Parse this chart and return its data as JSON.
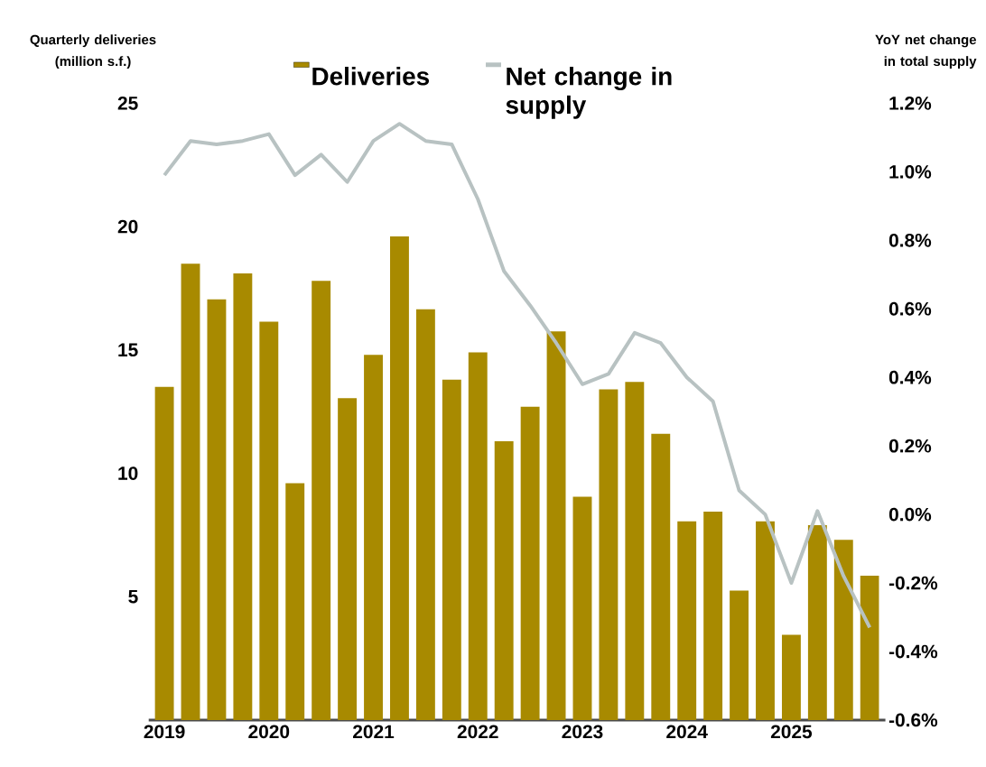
{
  "chart_data": {
    "type": "bar",
    "ylabel": "Quarterly deliveries (million s.f.)",
    "y2label": "YoY net change in total supply",
    "categories": [
      "2019",
      null,
      null,
      null,
      "2020",
      null,
      null,
      null,
      "2021",
      null,
      null,
      null,
      "2022",
      null,
      null,
      null,
      "2023",
      null,
      null,
      null,
      "2024",
      null,
      null,
      null,
      "2025",
      null,
      null,
      null
    ],
    "series": [
      {
        "name": "Deliveries",
        "color": "#a88a00",
        "values": [
          13.5,
          18.5,
          17.05,
          18.1,
          16.15,
          9.6,
          17.8,
          13.05,
          14.8,
          19.6,
          16.65,
          13.8,
          14.9,
          11.3,
          12.7,
          15.75,
          9.05,
          13.4,
          13.7,
          11.6,
          8.05,
          8.45,
          5.25,
          8.05,
          3.45,
          7.9,
          7.3,
          5.85
        ]
      },
      {
        "name": "Net change in supply",
        "type": "line",
        "axis": "y2",
        "color": "#b8c2c2",
        "values": [
          0.99,
          1.09,
          1.08,
          1.09,
          1.11,
          0.99,
          1.05,
          0.97,
          1.09,
          1.14,
          1.09,
          1.08,
          0.92,
          0.71,
          0.61,
          0.5,
          0.38,
          0.41,
          0.53,
          0.5,
          0.4,
          0.33,
          0.07,
          0.0,
          -0.2,
          0.01,
          -0.18,
          -0.33
        ]
      }
    ],
    "ylim": [
      0,
      25
    ],
    "yticks": [
      5,
      10,
      15,
      20,
      25
    ],
    "y2lim": [
      -0.6,
      1.2
    ],
    "y2ticks": [
      {
        "value": -0.6,
        "label": "-0.6%"
      },
      {
        "value": -0.4,
        "label": "-0.4%"
      },
      {
        "value": -0.2,
        "label": "-0.2%"
      },
      {
        "value": 0.0,
        "label": "0.0%"
      },
      {
        "value": 0.2,
        "label": "0.2%"
      },
      {
        "value": 0.4,
        "label": "0.4%"
      },
      {
        "value": 0.6,
        "label": "0.6%"
      },
      {
        "value": 0.8,
        "label": "0.8%"
      },
      {
        "value": 1.0,
        "label": "1.0%"
      },
      {
        "value": 1.2,
        "label": "1.2%"
      }
    ],
    "grid": false,
    "legend": "top"
  }
}
